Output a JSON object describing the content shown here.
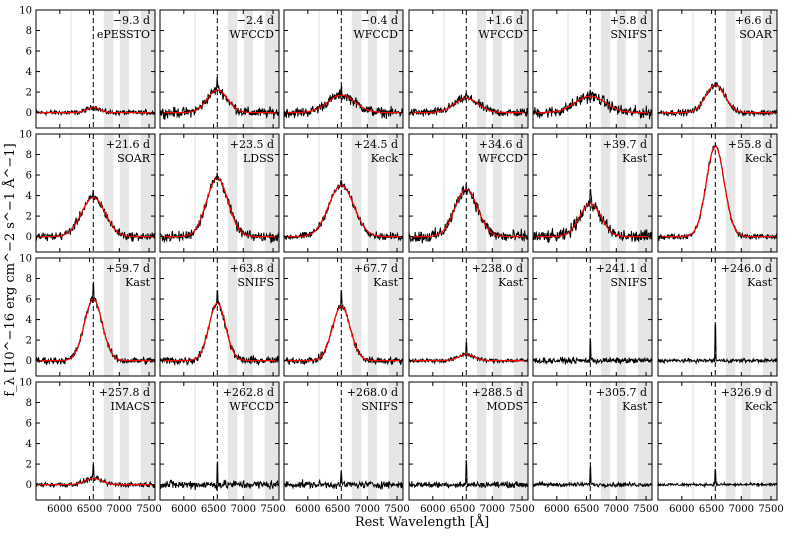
{
  "chart_data": {
    "type": "line",
    "xlabel": "Rest Wavelength [Å]",
    "ylabel": "f_λ [10^−16 erg cm^−2 s^−1 Å^−1]",
    "xlim": [
      5600,
      7600
    ],
    "ylim": [
      -1.5,
      10
    ],
    "xticks": [
      "6000",
      "6500",
      "7000",
      "7500"
    ],
    "yticks": [
      "0",
      "2",
      "4",
      "6",
      "8",
      "10"
    ],
    "reference_line_x": 6563,
    "shaded_bands": [
      [
        6180,
        6200
      ],
      [
        6740,
        6900
      ],
      [
        7010,
        7160
      ],
      [
        7360,
        7600
      ]
    ],
    "panels": [
      {
        "epoch": "−9.3 d",
        "instrument": "ePESSTO",
        "fit_amp": 0.5,
        "fit_sigma": 110,
        "noise": 0.35,
        "spike": 0.0
      },
      {
        "epoch": "−2.4 d",
        "instrument": "WFCCD",
        "fit_amp": 2.2,
        "fit_sigma": 170,
        "noise": 0.7,
        "spike": 1.2
      },
      {
        "epoch": "−0.4 d",
        "instrument": "WFCCD",
        "fit_amp": 1.7,
        "fit_sigma": 230,
        "noise": 0.7,
        "spike": 0.5
      },
      {
        "epoch": "+1.6 d",
        "instrument": "WFCCD",
        "fit_amp": 1.4,
        "fit_sigma": 200,
        "noise": 0.6,
        "spike": 0.5
      },
      {
        "epoch": "+5.8 d",
        "instrument": "SNIFS",
        "fit_amp": 1.6,
        "fit_sigma": 250,
        "noise": 0.8,
        "spike": 0.6
      },
      {
        "epoch": "+6.6 d",
        "instrument": "SOAR",
        "fit_amp": 2.7,
        "fit_sigma": 160,
        "noise": 0.45,
        "spike": 0.3
      },
      {
        "epoch": "+21.6 d",
        "instrument": "SOAR",
        "fit_amp": 3.8,
        "fit_sigma": 200,
        "noise": 0.6,
        "spike": 0.3
      },
      {
        "epoch": "+23.5 d",
        "instrument": "LDSS",
        "fit_amp": 5.7,
        "fit_sigma": 180,
        "noise": 0.7,
        "spike": 0.3
      },
      {
        "epoch": "+24.5 d",
        "instrument": "Keck",
        "fit_amp": 5.0,
        "fit_sigma": 210,
        "noise": 0.5,
        "spike": 0.2
      },
      {
        "epoch": "+34.6 d",
        "instrument": "WFCCD",
        "fit_amp": 4.6,
        "fit_sigma": 190,
        "noise": 0.9,
        "spike": 0.6
      },
      {
        "epoch": "+39.7 d",
        "instrument": "Kast",
        "fit_amp": 3.2,
        "fit_sigma": 180,
        "noise": 0.9,
        "spike": 1.5
      },
      {
        "epoch": "+55.8 d",
        "instrument": "Keck",
        "fit_amp": 8.8,
        "fit_sigma": 150,
        "noise": 0.4,
        "spike": 0.3
      },
      {
        "epoch": "+59.7 d",
        "instrument": "Kast",
        "fit_amp": 6.0,
        "fit_sigma": 150,
        "noise": 0.5,
        "spike": 1.5
      },
      {
        "epoch": "+63.8 d",
        "instrument": "SNIFS",
        "fit_amp": 5.6,
        "fit_sigma": 140,
        "noise": 0.6,
        "spike": 1.0
      },
      {
        "epoch": "+67.7 d",
        "instrument": "Kast",
        "fit_amp": 5.3,
        "fit_sigma": 150,
        "noise": 0.5,
        "spike": 1.5
      },
      {
        "epoch": "+238.0 d",
        "instrument": "Kast",
        "fit_amp": 0.6,
        "fit_sigma": 130,
        "noise": 0.3,
        "spike": 1.2
      },
      {
        "epoch": "+241.1 d",
        "instrument": "SNIFS",
        "fit_amp": 0.0,
        "fit_sigma": 130,
        "noise": 0.4,
        "spike": 2.0
      },
      {
        "epoch": "+246.0 d",
        "instrument": "Kast",
        "fit_amp": 0.0,
        "fit_sigma": 130,
        "noise": 0.25,
        "spike": 3.5
      },
      {
        "epoch": "+257.8 d",
        "instrument": "IMACS",
        "fit_amp": 0.6,
        "fit_sigma": 140,
        "noise": 0.35,
        "spike": 1.5
      },
      {
        "epoch": "+262.8 d",
        "instrument": "WFCCD",
        "fit_amp": 0.0,
        "fit_sigma": 130,
        "noise": 0.6,
        "spike": 2.0
      },
      {
        "epoch": "+268.0 d",
        "instrument": "SNIFS",
        "fit_amp": 0.0,
        "fit_sigma": 130,
        "noise": 0.5,
        "spike": 1.2
      },
      {
        "epoch": "+288.5 d",
        "instrument": "MODS",
        "fit_amp": 0.0,
        "fit_sigma": 130,
        "noise": 0.4,
        "spike": 2.2
      },
      {
        "epoch": "+305.7 d",
        "instrument": "Kast",
        "fit_amp": 0.0,
        "fit_sigma": 130,
        "noise": 0.3,
        "spike": 1.8
      },
      {
        "epoch": "+326.9 d",
        "instrument": "Keck",
        "fit_amp": 0.0,
        "fit_sigma": 130,
        "noise": 0.2,
        "spike": 1.5
      }
    ],
    "colors": {
      "data": "#000000",
      "fit": "#ff0000",
      "band": "#e6e6e6"
    }
  }
}
